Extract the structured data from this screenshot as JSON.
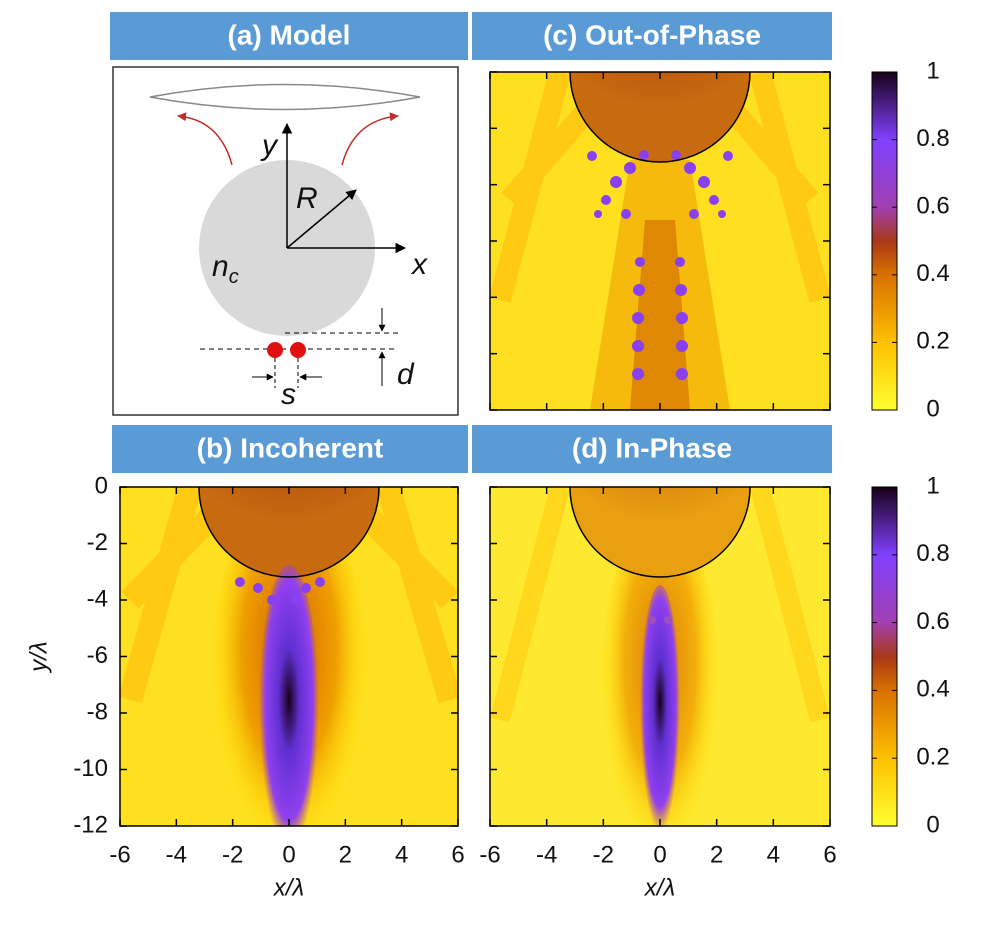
{
  "chart_data": [
    {
      "type": "diagram",
      "title": "(a) Model",
      "y_axis": "y",
      "x_axis": "x",
      "radius": "R",
      "index": "n",
      "index_sub": "c",
      "separation": "s",
      "distance": "d"
    },
    {
      "type": "heatmap",
      "title": "(c) Out-of-Phase",
      "xlim": [
        -6,
        6
      ],
      "ylim": [
        -12,
        0
      ],
      "xticks": [
        -6,
        -4,
        -2,
        0,
        2,
        4,
        6
      ],
      "yticks": [
        0,
        -2,
        -4,
        -6,
        -8,
        -10,
        -12
      ],
      "xtick_labels": false,
      "ytick_labels": false,
      "colorbar": {
        "lim": [
          0,
          1
        ],
        "ticks": [
          0,
          0.2,
          0.4,
          0.6,
          0.8,
          1
        ]
      }
    },
    {
      "type": "heatmap",
      "title": "(b) Incoherent",
      "xlim": [
        -6,
        6
      ],
      "ylim": [
        -12,
        0
      ],
      "xticks": [
        -6,
        -4,
        -2,
        0,
        2,
        4,
        6
      ],
      "yticks": [
        0,
        -2,
        -4,
        -6,
        -8,
        -10,
        -12
      ],
      "xtick_labels": true,
      "ytick_labels": true,
      "x_label": "x/λ",
      "y_label": "y/λ"
    },
    {
      "type": "heatmap",
      "title": "(d) In-Phase",
      "xlim": [
        -6,
        6
      ],
      "ylim": [
        -12,
        0
      ],
      "xticks": [
        -6,
        -4,
        -2,
        0,
        2,
        4,
        6
      ],
      "yticks": [
        0,
        -2,
        -4,
        -6,
        -8,
        -10,
        -12
      ],
      "xtick_labels": true,
      "ytick_labels": false,
      "x_label": "x/λ",
      "colorbar": {
        "lim": [
          0,
          1
        ],
        "ticks": [
          0,
          0.2,
          0.4,
          0.6,
          0.8,
          1
        ]
      }
    }
  ]
}
